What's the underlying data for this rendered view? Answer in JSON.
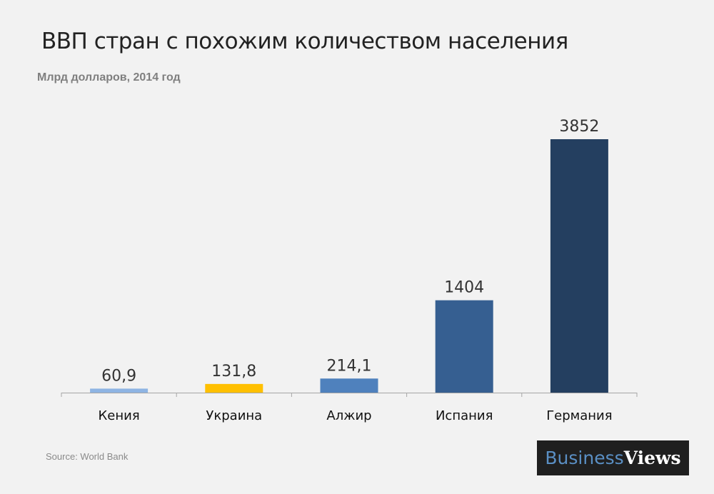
{
  "chart_data": {
    "type": "bar",
    "title": "ВВП стран с похожим количеством населения",
    "subtitle": "Млрд долларов, 2014 год",
    "categories": [
      "Кения",
      "Украина",
      "Алжир",
      "Испания",
      "Германия"
    ],
    "values": [
      60.9,
      131.8,
      214.1,
      1404,
      3852
    ],
    "data_labels": [
      "60,9",
      "131,8",
      "214,1",
      "1404",
      "3852"
    ],
    "colors": [
      "#8eb4e3",
      "#ffc000",
      "#4f81bd",
      "#365f91",
      "#243f60"
    ],
    "ylim": [
      0,
      3852
    ],
    "grid": false,
    "source": "Source: World Bank"
  },
  "logo": {
    "part1": "Business",
    "part2": "Views"
  }
}
